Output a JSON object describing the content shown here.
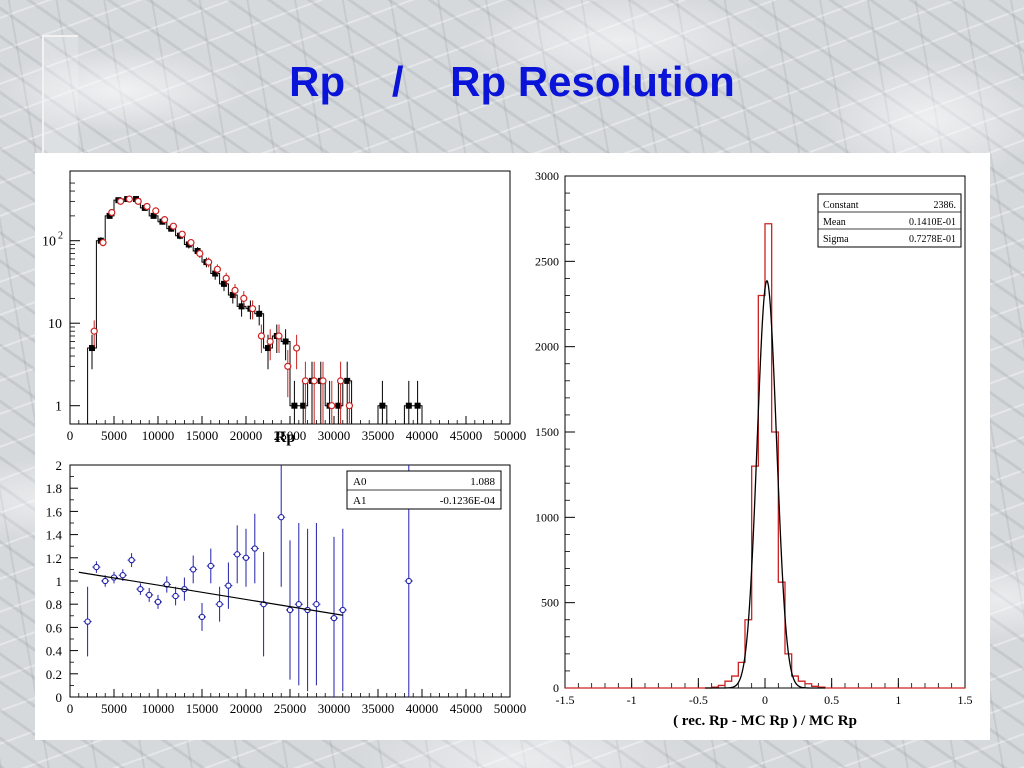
{
  "slide": {
    "title": "Rp    /    Rp Resolution"
  },
  "colors": {
    "title": "#0a14d8",
    "black": "#000000",
    "red": "#cc2222",
    "blue": "#2222aa"
  },
  "chart_data": [
    {
      "type": "line",
      "id": "rp-distribution",
      "title": "",
      "xlabel": "Rp",
      "ylabel": "",
      "xlim": [
        0,
        50000
      ],
      "ylim": [
        0.6,
        700
      ],
      "yscale": "log",
      "grid": false,
      "xticks": [
        "0",
        "5000",
        "10000",
        "15000",
        "20000",
        "25000",
        "30000",
        "35000",
        "40000",
        "45000",
        "50000"
      ],
      "yticks": [
        {
          "value": 1,
          "label": "1",
          "exp": ""
        },
        {
          "value": 10,
          "label": "10",
          "exp": ""
        },
        {
          "value": 100,
          "label": "10",
          "exp": "2"
        }
      ],
      "x": [
        2500,
        3500,
        4500,
        5500,
        6500,
        7500,
        8500,
        9500,
        10500,
        11500,
        12500,
        13500,
        14500,
        15500,
        16500,
        17500,
        18500,
        19500,
        20500,
        21500,
        22500,
        23500,
        24500,
        25500,
        26500,
        27500,
        28500,
        29500,
        30500,
        31500,
        32500,
        33500,
        34500,
        35500,
        36500,
        37500,
        38500,
        39500
      ],
      "series": [
        {
          "name": "",
          "color": "black",
          "style": "histogram",
          "values": [
            5,
            100,
            200,
            310,
            320,
            320,
            250,
            200,
            170,
            140,
            115,
            90,
            75,
            55,
            40,
            30,
            22,
            16,
            15,
            13,
            5,
            7,
            6,
            1,
            1,
            2,
            2,
            1,
            1,
            2,
            0,
            0,
            0,
            1,
            0,
            0,
            1,
            1
          ]
        },
        {
          "name": "",
          "color": "red",
          "style": "markers",
          "values": [
            8,
            95,
            220,
            300,
            320,
            300,
            260,
            230,
            180,
            150,
            120,
            95,
            70,
            55,
            45,
            35,
            25,
            20,
            15,
            7,
            6,
            7,
            3,
            5,
            2,
            2,
            2,
            1,
            2,
            1,
            0,
            0,
            0,
            0,
            0,
            0,
            0,
            0
          ]
        }
      ]
    },
    {
      "type": "scatter",
      "id": "rp-ratio",
      "title": "",
      "xlabel": "",
      "ylabel": "",
      "xlim": [
        0,
        50000
      ],
      "ylim": [
        0,
        2
      ],
      "grid": false,
      "xticks": [
        "0",
        "5000",
        "10000",
        "15000",
        "20000",
        "25000",
        "30000",
        "35000",
        "40000",
        "45000",
        "50000"
      ],
      "yticks": [
        "0",
        "0.2",
        "0.4",
        "0.6",
        "0.8",
        "1",
        "1.2",
        "1.4",
        "1.6",
        "1.8",
        "2"
      ],
      "fit": {
        "A0_label": "A0",
        "A0": "1.088",
        "A1_label": "A1",
        "A1": "-0.1236E-04",
        "a0": 1.088,
        "a1": -1.236e-05,
        "x_range": [
          1000,
          31000
        ]
      },
      "points": [
        {
          "x": 2000,
          "y": 0.65,
          "err": 0.3
        },
        {
          "x": 3000,
          "y": 1.12,
          "err": 0.05
        },
        {
          "x": 4000,
          "y": 1.0,
          "err": 0.05
        },
        {
          "x": 5000,
          "y": 1.03,
          "err": 0.05
        },
        {
          "x": 6000,
          "y": 1.05,
          "err": 0.05
        },
        {
          "x": 7000,
          "y": 1.18,
          "err": 0.06
        },
        {
          "x": 8000,
          "y": 0.93,
          "err": 0.05
        },
        {
          "x": 9000,
          "y": 0.88,
          "err": 0.06
        },
        {
          "x": 10000,
          "y": 0.82,
          "err": 0.06
        },
        {
          "x": 11000,
          "y": 0.97,
          "err": 0.07
        },
        {
          "x": 12000,
          "y": 0.87,
          "err": 0.08
        },
        {
          "x": 13000,
          "y": 0.93,
          "err": 0.1
        },
        {
          "x": 14000,
          "y": 1.1,
          "err": 0.12
        },
        {
          "x": 15000,
          "y": 0.69,
          "err": 0.12
        },
        {
          "x": 16000,
          "y": 1.13,
          "err": 0.15
        },
        {
          "x": 17000,
          "y": 0.8,
          "err": 0.15
        },
        {
          "x": 18000,
          "y": 0.96,
          "err": 0.2
        },
        {
          "x": 19000,
          "y": 1.23,
          "err": 0.25
        },
        {
          "x": 20000,
          "y": 1.2,
          "err": 0.25
        },
        {
          "x": 21000,
          "y": 1.28,
          "err": 0.3
        },
        {
          "x": 22000,
          "y": 0.8,
          "err": 0.45
        },
        {
          "x": 24000,
          "y": 1.55,
          "err": 0.6
        },
        {
          "x": 25000,
          "y": 0.75,
          "err": 0.6
        },
        {
          "x": 26000,
          "y": 0.8,
          "err": 0.7
        },
        {
          "x": 27000,
          "y": 0.75,
          "err": 0.7
        },
        {
          "x": 28000,
          "y": 0.8,
          "err": 0.7
        },
        {
          "x": 30000,
          "y": 0.68,
          "err": 0.7
        },
        {
          "x": 31000,
          "y": 0.75,
          "err": 0.7
        },
        {
          "x": 38500,
          "y": 1.0,
          "err": 1.1
        }
      ]
    },
    {
      "type": "line",
      "id": "rp-resolution",
      "title": "",
      "xlabel": "( rec. Rp - MC Rp ) / MC Rp",
      "ylabel": "",
      "xlim": [
        -1.5,
        1.5
      ],
      "ylim": [
        0,
        3000
      ],
      "grid": false,
      "xticks": [
        "-1.5",
        "-1",
        "-0.5",
        "0",
        "0.5",
        "1",
        "1.5"
      ],
      "yticks": [
        "0",
        "500",
        "1000",
        "1500",
        "2000",
        "2500",
        "3000"
      ],
      "stats": [
        {
          "label": "Constant",
          "value": "2386."
        },
        {
          "label": "Mean",
          "value": "0.1410E-01"
        },
        {
          "label": "Sigma",
          "value": "0.7278E-01"
        }
      ],
      "fit": {
        "type": "gaussian",
        "constant": 2386,
        "mean": 0.0141,
        "sigma": 0.07278
      },
      "histogram": {
        "color": "red",
        "bin_width": 0.05,
        "x": [
          -0.375,
          -0.325,
          -0.275,
          -0.225,
          -0.175,
          -0.125,
          -0.075,
          -0.025,
          0.025,
          0.075,
          0.125,
          0.175,
          0.225,
          0.275,
          0.325,
          0.375,
          0.425
        ],
        "values": [
          5,
          15,
          40,
          70,
          150,
          400,
          1300,
          2300,
          2720,
          1500,
          620,
          200,
          70,
          40,
          25,
          10,
          5
        ]
      }
    }
  ]
}
